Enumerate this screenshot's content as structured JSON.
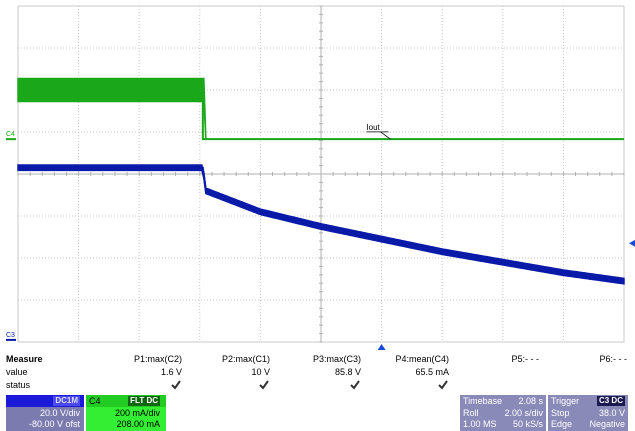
{
  "chart_data": {
    "type": "line",
    "grid": {
      "divisions_x": 10,
      "divisions_y": 8,
      "grid_on": true
    },
    "series": [
      {
        "name": "C4",
        "color": "#1aa81a",
        "noise_band": true,
        "x_div": [
          0,
          3.05,
          3.05,
          10
        ],
        "y_div": [
          6.0,
          6.0,
          4.83,
          4.83
        ],
        "band_div": [
          0.55,
          0.55,
          0.0,
          0.0
        ]
      },
      {
        "name": "C3",
        "color": "#0a1aa8",
        "noise_band": true,
        "x_div": [
          0,
          3.05,
          3.1,
          4,
          5,
          6,
          7,
          8,
          9,
          10
        ],
        "y_div": [
          4.15,
          4.15,
          3.6,
          3.1,
          2.75,
          2.45,
          2.15,
          1.9,
          1.65,
          1.45
        ],
        "band_div": [
          0.13,
          0.13,
          0.13,
          0.13,
          0.13,
          0.13,
          0.13,
          0.13,
          0.13,
          0.13
        ]
      }
    ],
    "annotations": [
      {
        "text": "Iout",
        "x_div": 5.75,
        "y_div": 5.05
      }
    ],
    "channel_markers": [
      {
        "label": "C4",
        "color": "#1aa81a",
        "y_div": 4.83
      },
      {
        "label": "C3",
        "color": "#0a1aa8",
        "y_div": 0.05
      }
    ],
    "trigger_marker": {
      "x_div": 6.0,
      "color": "#1a4ad8"
    },
    "level_marker": {
      "y_div": 2.35,
      "color": "#1a4ad8"
    }
  },
  "measure": {
    "header": "Measure",
    "row_value": "value",
    "row_status": "status",
    "columns": [
      {
        "name": "P1:max(C2)",
        "value": "1.6 V",
        "status": "check"
      },
      {
        "name": "P2:max(C1)",
        "value": "10 V",
        "status": "check"
      },
      {
        "name": "P3:max(C3)",
        "value": "85.8 V",
        "status": "check"
      },
      {
        "name": "P4:mean(C4)",
        "value": "65.5 mA",
        "status": "check"
      },
      {
        "name": "P5:- - -",
        "value": "",
        "status": ""
      },
      {
        "name": "P6:- - -",
        "value": "",
        "status": ""
      }
    ]
  },
  "channel_c3": {
    "scale": "20.0 V/div",
    "offset": "-80.00 V ofst",
    "tag": "DC1M",
    "header_color": "#1a1ad8"
  },
  "channel_c4": {
    "label": "C4",
    "tag": "FLT DC",
    "scale": "200 mA/div",
    "offset": "208.00 mA"
  },
  "timebase": {
    "label": "Timebase",
    "value": "2.08 s",
    "mode": "Roll",
    "scale": "2.00 s/div",
    "samples": "1.00 MS",
    "rate": "50 kS/s"
  },
  "trigger": {
    "label": "Trigger",
    "tag": "C3 DC",
    "mode": "Stop",
    "level": "38.0 V",
    "type": "Edge",
    "slope": "Negative"
  }
}
